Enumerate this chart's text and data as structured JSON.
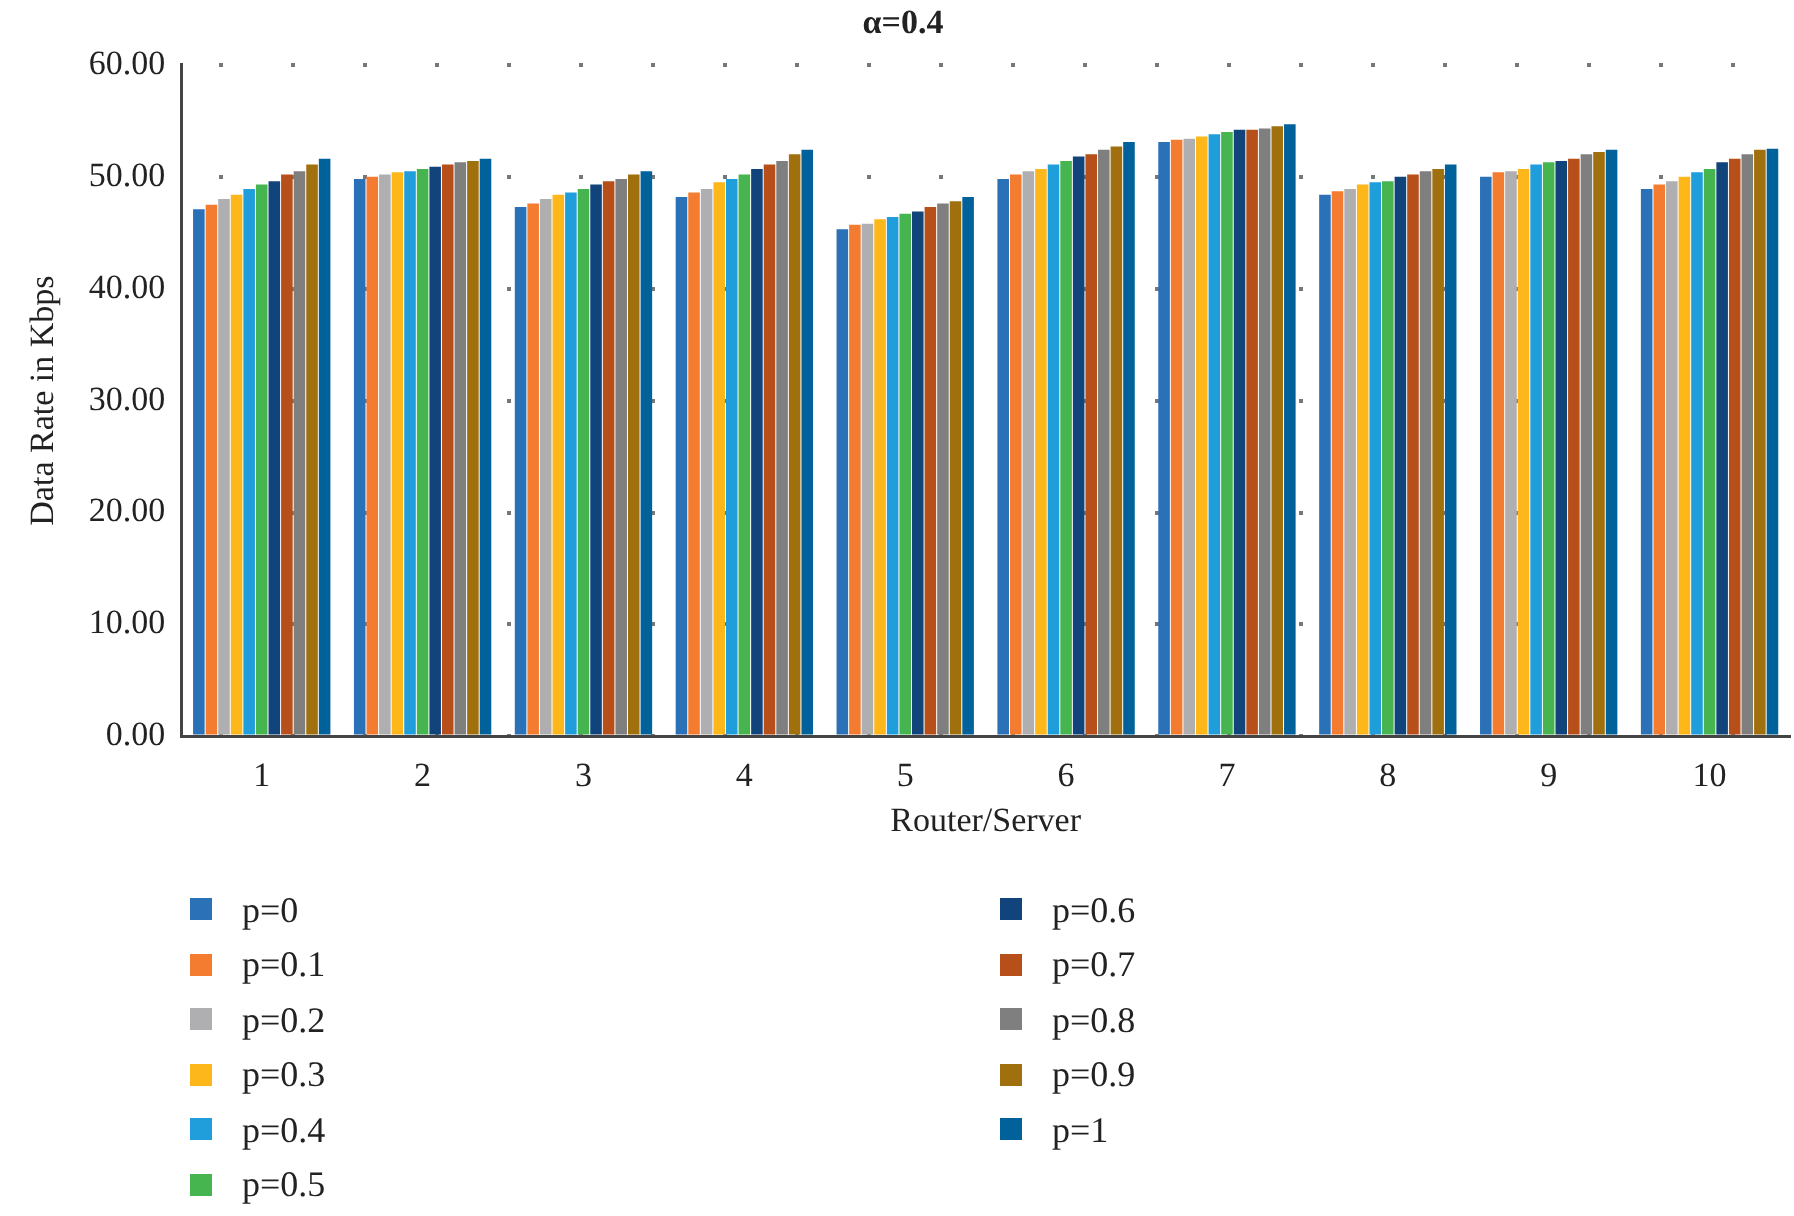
{
  "chart_data": {
    "type": "bar",
    "title": "α=0.4",
    "xlabel": "Router/Server",
    "ylabel": "Data Rate in Kbps",
    "categories": [
      "1",
      "2",
      "3",
      "4",
      "5",
      "6",
      "7",
      "8",
      "9",
      "10"
    ],
    "series": [
      {
        "name": "p=0",
        "color": "#2a71b8",
        "values": [
          47.1,
          49.8,
          47.3,
          48.2,
          45.3,
          49.8,
          53.1,
          48.4,
          50.0,
          48.9
        ]
      },
      {
        "name": "p=0.1",
        "color": "#f47c30",
        "values": [
          47.5,
          50.0,
          47.6,
          48.6,
          45.7,
          50.2,
          53.3,
          48.7,
          50.4,
          49.3
        ]
      },
      {
        "name": "p=0.2",
        "color": "#afafb2",
        "values": [
          48.0,
          50.2,
          48.0,
          48.9,
          45.8,
          50.5,
          53.4,
          48.9,
          50.5,
          49.6
        ]
      },
      {
        "name": "p=0.3",
        "color": "#fdb71a",
        "values": [
          48.4,
          50.4,
          48.4,
          49.5,
          46.2,
          50.7,
          53.6,
          49.3,
          50.7,
          50.0
        ]
      },
      {
        "name": "p=0.4",
        "color": "#1f9edb",
        "values": [
          48.9,
          50.5,
          48.6,
          49.8,
          46.4,
          51.1,
          53.8,
          49.5,
          51.1,
          50.4
        ]
      },
      {
        "name": "p=0.5",
        "color": "#46b550",
        "values": [
          49.3,
          50.7,
          48.9,
          50.2,
          46.7,
          51.4,
          54.0,
          49.6,
          51.3,
          50.7
        ]
      },
      {
        "name": "p=0.6",
        "color": "#12447c",
        "values": [
          49.6,
          50.9,
          49.3,
          50.7,
          46.9,
          51.8,
          54.2,
          50.0,
          51.4,
          51.3
        ]
      },
      {
        "name": "p=0.7",
        "color": "#b64f1a",
        "values": [
          50.2,
          51.1,
          49.6,
          51.1,
          47.3,
          52.0,
          54.2,
          50.2,
          51.6,
          51.6
        ]
      },
      {
        "name": "p=0.8",
        "color": "#7f7f80",
        "values": [
          50.5,
          51.3,
          49.8,
          51.4,
          47.6,
          52.4,
          54.3,
          50.5,
          52.0,
          52.0
        ]
      },
      {
        "name": "p=0.9",
        "color": "#a1700e",
        "values": [
          51.1,
          51.4,
          50.2,
          52.0,
          47.8,
          52.7,
          54.5,
          50.7,
          52.2,
          52.4
        ]
      },
      {
        "name": "p=1",
        "color": "#01619a",
        "values": [
          51.6,
          51.6,
          50.5,
          52.4,
          48.2,
          53.1,
          54.7,
          51.1,
          52.4,
          52.5
        ]
      }
    ],
    "ylim": [
      0,
      60
    ],
    "yticks": [
      {
        "value": 0,
        "label": "0.00"
      },
      {
        "value": 10,
        "label": "10.00"
      },
      {
        "value": 20,
        "label": "20.00"
      },
      {
        "value": 30,
        "label": "30.00"
      },
      {
        "value": 40,
        "label": "40.00"
      },
      {
        "value": 50,
        "label": "50.00"
      },
      {
        "value": 60,
        "label": "60.00"
      }
    ],
    "grid": "y",
    "legend": "bottom"
  }
}
